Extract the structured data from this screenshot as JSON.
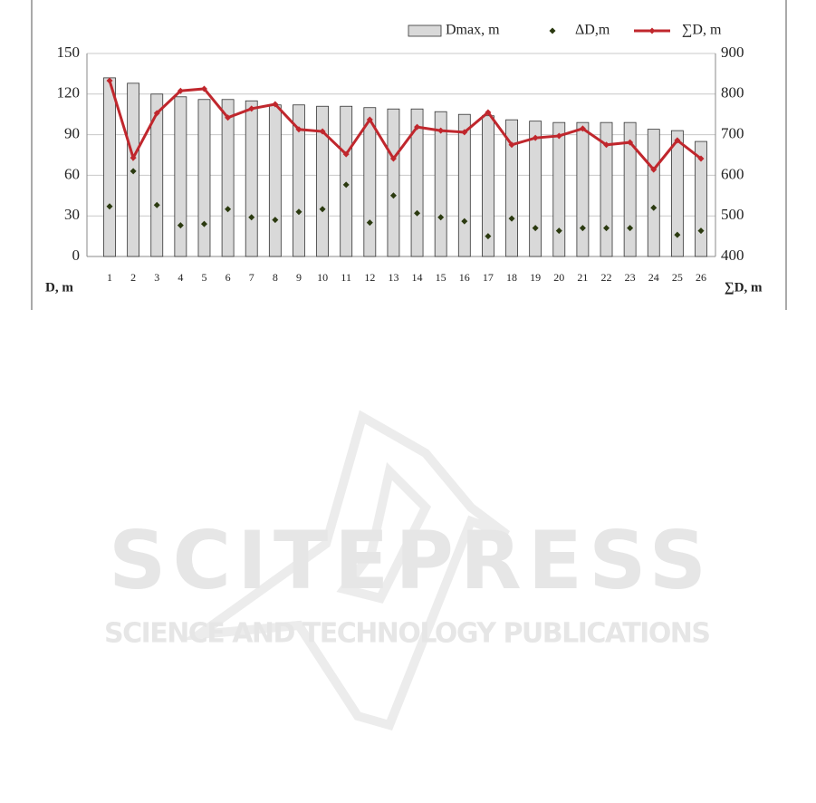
{
  "chart_data": {
    "type": "combo",
    "ylabel": "D, m",
    "y2label": "∑D, m",
    "categories": [
      "1",
      "2",
      "3",
      "4",
      "5",
      "6",
      "7",
      "8",
      "9",
      "10",
      "11",
      "12",
      "13",
      "14",
      "15",
      "16",
      "17",
      "18",
      "19",
      "20",
      "21",
      "22",
      "23",
      "24",
      "25",
      "26"
    ],
    "series": [
      {
        "name": "Dmax, m",
        "type": "bar",
        "color": "#d9d9d9",
        "values": [
          132,
          128,
          120,
          118,
          116,
          116,
          115,
          112,
          112,
          111,
          111,
          110,
          109,
          109,
          107,
          105,
          104,
          101,
          100,
          99,
          99,
          99,
          99,
          94,
          93,
          85
        ]
      },
      {
        "name": "ΔD,m",
        "type": "scatter",
        "color": "#2b3a10",
        "values": [
          37,
          63,
          38,
          23,
          24,
          35,
          29,
          27,
          33,
          35,
          53,
          25,
          45,
          32,
          29,
          26,
          15,
          28,
          21,
          19,
          21,
          21,
          21,
          36,
          16,
          19
        ]
      },
      {
        "name": "∑D, m",
        "type": "line",
        "axis": "y2",
        "color": "#c0272d",
        "values": [
          833,
          643,
          753,
          808,
          813,
          742,
          764,
          775,
          713,
          708,
          652,
          737,
          641,
          719,
          710,
          706,
          755,
          675,
          692,
          697,
          715,
          675,
          681,
          614,
          686,
          641
        ]
      }
    ],
    "ylim": [
      0,
      150
    ],
    "yticks": [
      0,
      30,
      60,
      90,
      120,
      150
    ],
    "y2lim": [
      400,
      900
    ],
    "y2ticks": [
      400,
      500,
      600,
      700,
      800,
      900
    ],
    "grid": true,
    "legend": "top-right"
  },
  "watermark": {
    "title": "SCITEPRESS",
    "subtitle": "SCIENCE AND TECHNOLOGY PUBLICATIONS"
  }
}
